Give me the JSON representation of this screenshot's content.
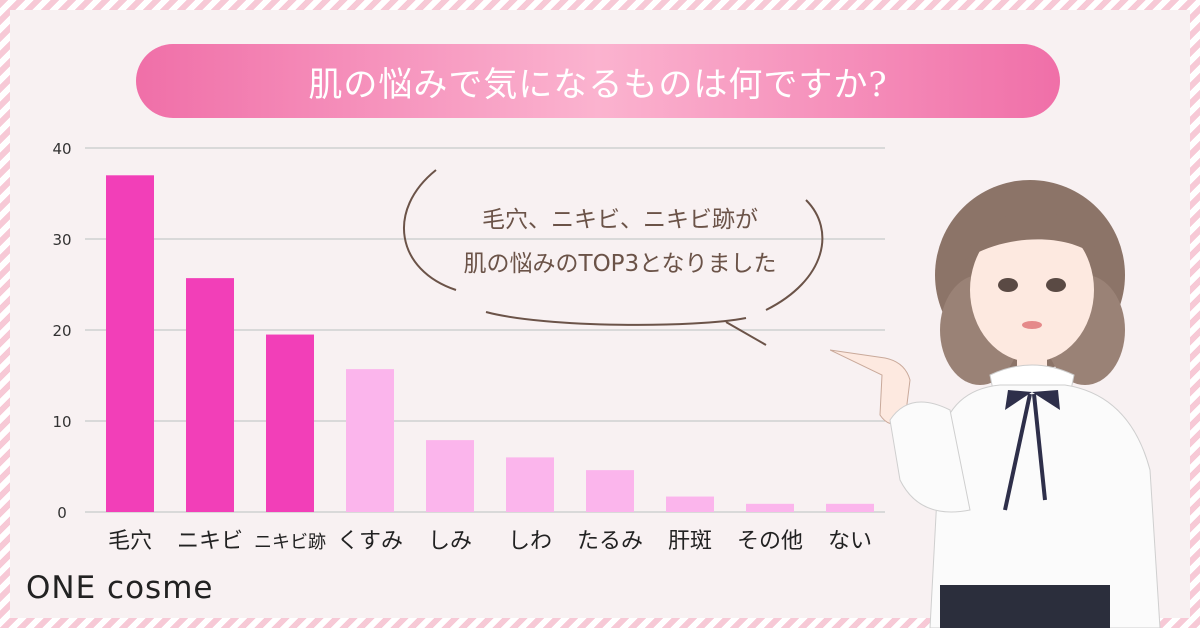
{
  "title": "肌の悩みで気になるものは何ですか?",
  "bubble": {
    "line1": "毛穴、ニキビ、ニキビ跡が",
    "line2": "肌の悩みのTOP3となりました"
  },
  "logo": "ONE cosme",
  "colors": {
    "highlight_bar": "#f23fb8",
    "normal_bar": "#fbb5ec",
    "grid": "#d9d9d9",
    "axis_text": "#333333"
  },
  "chart_data": {
    "type": "bar",
    "categories": [
      "毛穴",
      "ニキビ",
      "ニキビ跡",
      "くすみ",
      "しみ",
      "しわ",
      "たるみ",
      "肝斑",
      "その他",
      "ない"
    ],
    "values": [
      37,
      25.7,
      19.5,
      15.7,
      7.9,
      6,
      4.6,
      1.7,
      0.9,
      0.9
    ],
    "highlight": [
      true,
      true,
      true,
      false,
      false,
      false,
      false,
      false,
      false,
      false
    ],
    "yticks": [
      0,
      10,
      20,
      30,
      40
    ],
    "ylim": [
      0,
      40
    ],
    "grid": true,
    "title": "",
    "xlabel": "",
    "ylabel": ""
  }
}
